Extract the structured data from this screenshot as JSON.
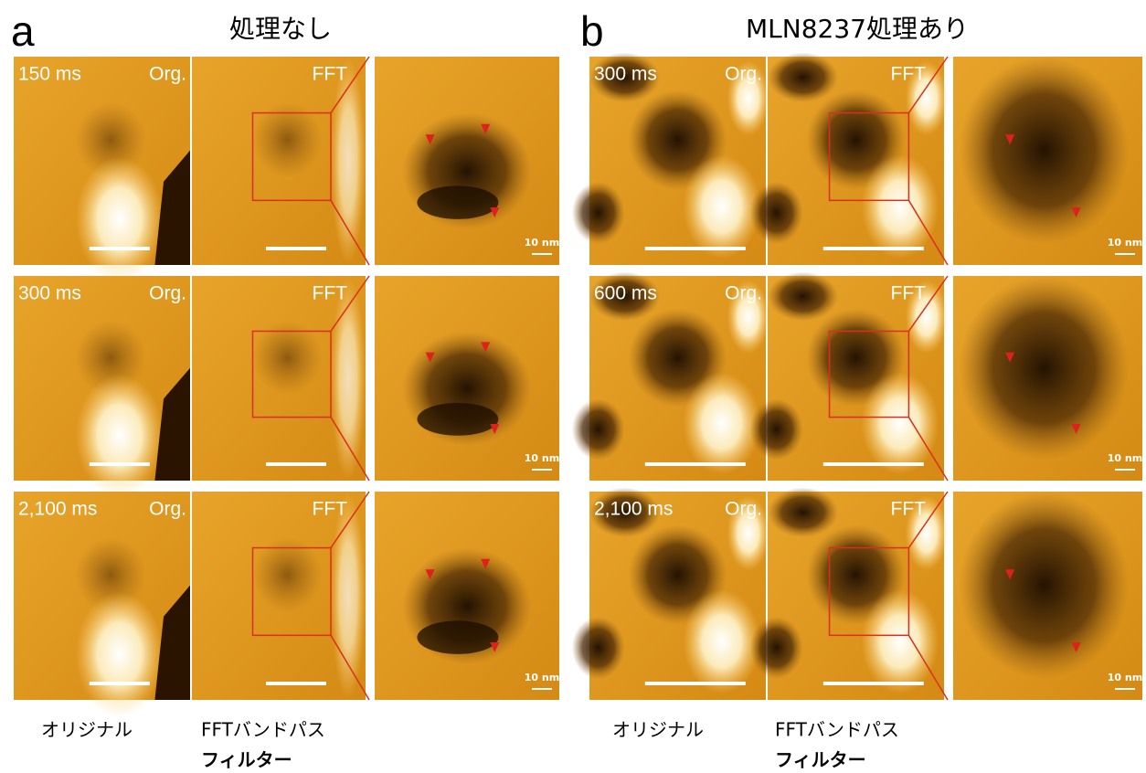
{
  "panels": [
    {
      "label": "a",
      "title": "処理なし",
      "rows": [
        {
          "time": "150 ms",
          "org": "Org.",
          "fft": "FFT",
          "scale": "10 nm"
        },
        {
          "time": "300 ms",
          "org": "Org.",
          "fft": "FFT",
          "scale": "10 nm"
        },
        {
          "time": "2,100 ms",
          "org": "Org.",
          "fft": "FFT",
          "scale": "10 nm"
        }
      ],
      "captions": {
        "original": "オリジナル",
        "fft_line1": "FFTバンドパス",
        "fft_line2": "フィルター"
      }
    },
    {
      "label": "b",
      "title": "MLN8237処理あり",
      "rows": [
        {
          "time": "300 ms",
          "org": "Org.",
          "fft": "FFT",
          "scale": "10 nm"
        },
        {
          "time": "600 ms",
          "org": "Org.",
          "fft": "FFT",
          "scale": "10 nm"
        },
        {
          "time": "2,100 ms",
          "org": "Org.",
          "fft": "FFT",
          "scale": "10 nm"
        }
      ],
      "captions": {
        "original": "オリジナル",
        "fft_line1": "FFTバンドパス",
        "fft_line2": "フィルター"
      }
    }
  ]
}
